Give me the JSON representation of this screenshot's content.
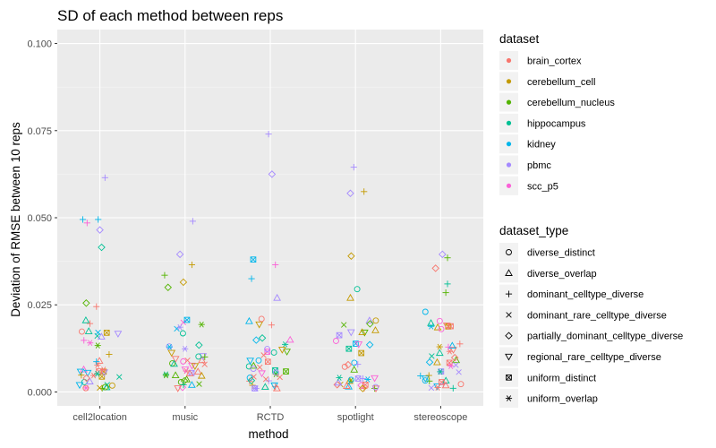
{
  "chart_data": {
    "type": "scatter",
    "title": "SD of each method between reps",
    "xlabel": "method",
    "ylabel": "Deviation of RMSE between 10 reps",
    "categories": [
      "cell2location",
      "music",
      "RCTD",
      "spotlight",
      "stereoscope"
    ],
    "ylim": [
      -0.004,
      0.104
    ],
    "yticks": [
      0.0,
      0.025,
      0.05,
      0.075,
      0.1
    ],
    "ytick_labels": [
      "0.000",
      "0.025",
      "0.050",
      "0.075",
      "0.100"
    ],
    "grid": true,
    "legend_position": "right",
    "legend_color": {
      "title": "dataset",
      "items": [
        {
          "label": "brain_cortex",
          "color": "#F8766D"
        },
        {
          "label": "cerebellum_cell",
          "color": "#C49A00"
        },
        {
          "label": "cerebellum_nucleus",
          "color": "#53B400"
        },
        {
          "label": "hippocampus",
          "color": "#00C094"
        },
        {
          "label": "kidney",
          "color": "#00B6EB"
        },
        {
          "label": "pbmc",
          "color": "#A58AFF"
        },
        {
          "label": "scc_p5",
          "color": "#FB61D7"
        }
      ]
    },
    "legend_shape": {
      "title": "dataset_type",
      "items": [
        {
          "label": "diverse_distinct",
          "shape": "circle"
        },
        {
          "label": "diverse_overlap",
          "shape": "triangle"
        },
        {
          "label": "dominant_celltype_diverse",
          "shape": "plus"
        },
        {
          "label": "dominant_rare_celltype_diverse",
          "shape": "cross"
        },
        {
          "label": "partially_dominant_celltype_diverse",
          "shape": "diamond"
        },
        {
          "label": "regional_rare_celltype_diverse",
          "shape": "triangle-down"
        },
        {
          "label": "uniform_distinct",
          "shape": "square-cross"
        },
        {
          "label": "uniform_overlap",
          "shape": "asterisk"
        }
      ]
    },
    "highlight_points": [
      {
        "method": "cell2location",
        "jitter": 0.06,
        "y": 0.0615,
        "dataset": "pbmc",
        "shape": "plus"
      },
      {
        "method": "cell2location",
        "jitter": -0.2,
        "y": 0.0495,
        "dataset": "kidney",
        "shape": "plus"
      },
      {
        "method": "cell2location",
        "jitter": -0.15,
        "y": 0.0485,
        "dataset": "scc_p5",
        "shape": "plus"
      },
      {
        "method": "cell2location",
        "jitter": -0.02,
        "y": 0.0495,
        "dataset": "kidney",
        "shape": "plus"
      },
      {
        "method": "cell2location",
        "jitter": 0.0,
        "y": 0.0465,
        "dataset": "pbmc",
        "shape": "diamond"
      },
      {
        "method": "cell2location",
        "jitter": 0.02,
        "y": 0.0415,
        "dataset": "hippocampus",
        "shape": "diamond"
      },
      {
        "method": "cell2location",
        "jitter": -0.16,
        "y": 0.0255,
        "dataset": "cerebellum_nucleus",
        "shape": "diamond"
      },
      {
        "method": "cell2location",
        "jitter": -0.04,
        "y": 0.0245,
        "dataset": "brain_cortex",
        "shape": "plus"
      },
      {
        "method": "music",
        "jitter": 0.09,
        "y": 0.049,
        "dataset": "pbmc",
        "shape": "plus"
      },
      {
        "method": "music",
        "jitter": -0.06,
        "y": 0.0395,
        "dataset": "pbmc",
        "shape": "diamond"
      },
      {
        "method": "music",
        "jitter": 0.08,
        "y": 0.0365,
        "dataset": "cerebellum_cell",
        "shape": "plus"
      },
      {
        "method": "music",
        "jitter": -0.24,
        "y": 0.0335,
        "dataset": "cerebellum_nucleus",
        "shape": "plus"
      },
      {
        "method": "music",
        "jitter": -0.02,
        "y": 0.0315,
        "dataset": "cerebellum_cell",
        "shape": "diamond"
      },
      {
        "method": "music",
        "jitter": -0.2,
        "y": 0.03,
        "dataset": "cerebellum_nucleus",
        "shape": "diamond"
      },
      {
        "method": "RCTD",
        "jitter": -0.02,
        "y": 0.074,
        "dataset": "pbmc",
        "shape": "plus"
      },
      {
        "method": "RCTD",
        "jitter": 0.02,
        "y": 0.0625,
        "dataset": "pbmc",
        "shape": "diamond"
      },
      {
        "method": "RCTD",
        "jitter": -0.2,
        "y": 0.038,
        "dataset": "kidney",
        "shape": "square-cross"
      },
      {
        "method": "RCTD",
        "jitter": 0.06,
        "y": 0.0365,
        "dataset": "scc_p5",
        "shape": "plus"
      },
      {
        "method": "RCTD",
        "jitter": -0.22,
        "y": 0.0325,
        "dataset": "kidney",
        "shape": "plus"
      },
      {
        "method": "RCTD",
        "jitter": 0.08,
        "y": 0.027,
        "dataset": "pbmc",
        "shape": "triangle"
      },
      {
        "method": "spotlight",
        "jitter": -0.02,
        "y": 0.0645,
        "dataset": "pbmc",
        "shape": "plus"
      },
      {
        "method": "spotlight",
        "jitter": -0.06,
        "y": 0.057,
        "dataset": "pbmc",
        "shape": "diamond"
      },
      {
        "method": "spotlight",
        "jitter": 0.1,
        "y": 0.0575,
        "dataset": "cerebellum_cell",
        "shape": "plus"
      },
      {
        "method": "spotlight",
        "jitter": -0.05,
        "y": 0.039,
        "dataset": "cerebellum_cell",
        "shape": "diamond"
      },
      {
        "method": "spotlight",
        "jitter": 0.02,
        "y": 0.0295,
        "dataset": "hippocampus",
        "shape": "circle"
      },
      {
        "method": "spotlight",
        "jitter": -0.06,
        "y": 0.027,
        "dataset": "cerebellum_cell",
        "shape": "triangle"
      },
      {
        "method": "stereoscope",
        "jitter": 0.02,
        "y": 0.0395,
        "dataset": "pbmc",
        "shape": "diamond"
      },
      {
        "method": "stereoscope",
        "jitter": 0.08,
        "y": 0.0385,
        "dataset": "cerebellum_nucleus",
        "shape": "plus"
      },
      {
        "method": "stereoscope",
        "jitter": -0.06,
        "y": 0.0355,
        "dataset": "brain_cortex",
        "shape": "diamond"
      },
      {
        "method": "stereoscope",
        "jitter": 0.08,
        "y": 0.031,
        "dataset": "hippocampus",
        "shape": "plus"
      },
      {
        "method": "stereoscope",
        "jitter": 0.06,
        "y": 0.0285,
        "dataset": "cerebellum_nucleus",
        "shape": "plus"
      },
      {
        "method": "stereoscope",
        "jitter": -0.18,
        "y": 0.023,
        "dataset": "kidney",
        "shape": "circle"
      }
    ],
    "cluster_points": {
      "per_method": 40,
      "y_range": [
        0.001,
        0.021
      ]
    }
  }
}
